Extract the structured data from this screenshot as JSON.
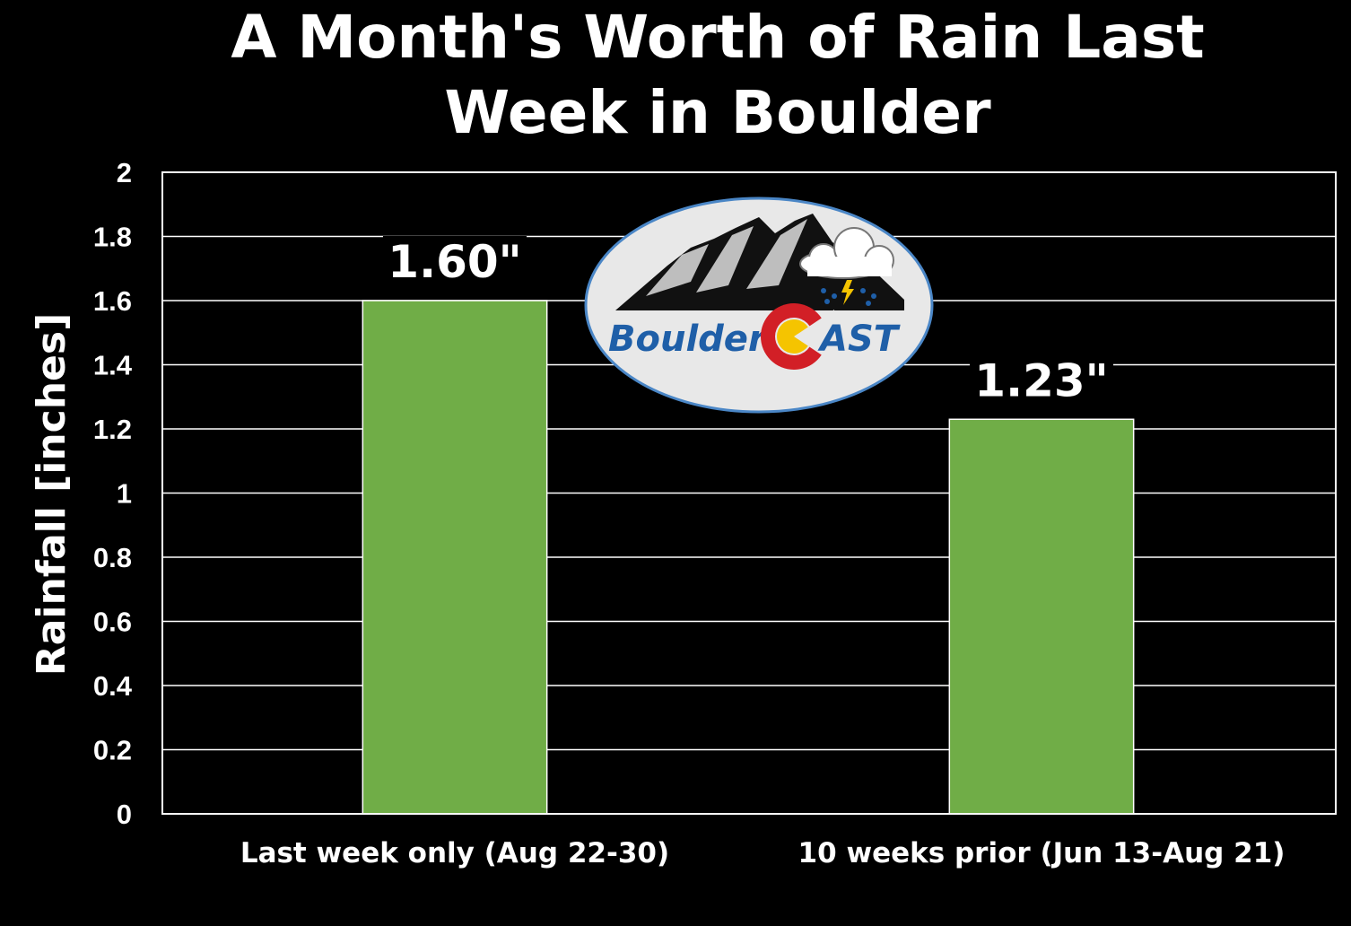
{
  "chart_data": {
    "type": "bar",
    "title_lines": [
      "A Month's Worth of Rain Last",
      "Week in Boulder"
    ],
    "ylabel": "Rainfall [inches]",
    "xlabel": "",
    "ylim": [
      0,
      2
    ],
    "yticks": [
      "0",
      "0.2",
      "0.4",
      "0.6",
      "0.8",
      "1",
      "1.2",
      "1.4",
      "1.6",
      "1.8",
      "2"
    ],
    "tick_step": 0.2,
    "grid": true,
    "categories": [
      "Last week only (Aug 22-30)",
      "10 weeks prior (Jun 13-Aug 21)"
    ],
    "values": [
      1.6,
      1.23
    ],
    "data_labels": [
      "1.60\"",
      "1.23\""
    ],
    "bar_color": "#70AD47",
    "background": "#000000"
  },
  "logo": {
    "text_left": "Boulder",
    "text_right": "AST",
    "text_color": "#1F5FA8",
    "c_red": "#D21F26",
    "c_yellow": "#F5C400",
    "oval_fill": "#E8E8E8",
    "oval_stroke": "#4A86C6"
  }
}
